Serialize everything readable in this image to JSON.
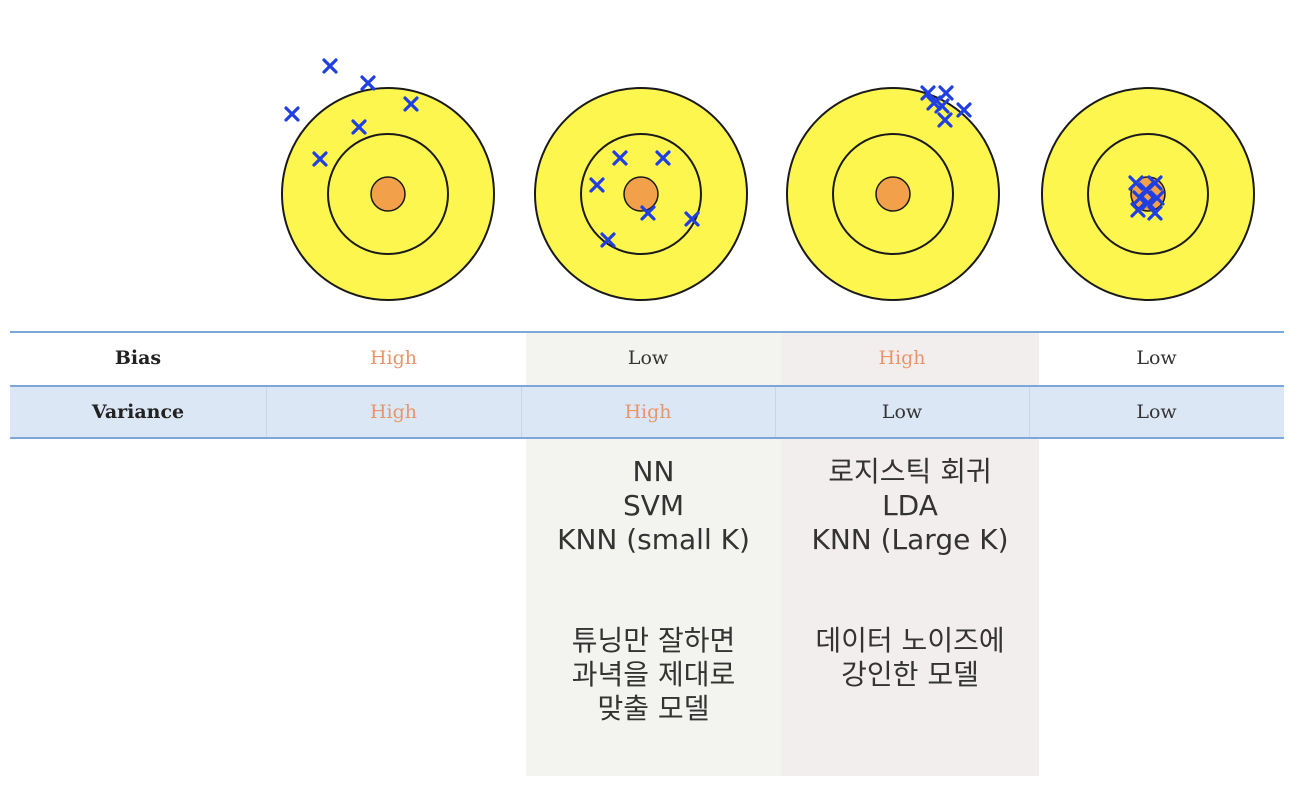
{
  "colors": {
    "ring": "#fdf64f",
    "bullseye": "#f3a04b",
    "stroke": "#1a1a1a",
    "mark": "#1f3fe0",
    "high": "#e8956a",
    "low": "#333333",
    "table_rule": "#7ba7d9",
    "variance_row_bg": "#dbe7f5"
  },
  "table": {
    "bias_label": "Bias",
    "variance_label": "Variance",
    "bias": [
      "High",
      "Low",
      "High",
      "Low"
    ],
    "variance": [
      "High",
      "High",
      "Low",
      "Low"
    ]
  },
  "descriptions": {
    "col3": {
      "models": [
        "NN",
        "SVM",
        "KNN (small K)"
      ],
      "note": [
        "튜닝만 잘하면",
        "과녁을 제대로",
        "맞출 모델"
      ]
    },
    "col4": {
      "models": [
        "로지스틱 회귀",
        "LDA",
        "KNN (Large K)"
      ],
      "note": [
        "데이터 노이즈에",
        "강인한 모델"
      ]
    }
  }
}
